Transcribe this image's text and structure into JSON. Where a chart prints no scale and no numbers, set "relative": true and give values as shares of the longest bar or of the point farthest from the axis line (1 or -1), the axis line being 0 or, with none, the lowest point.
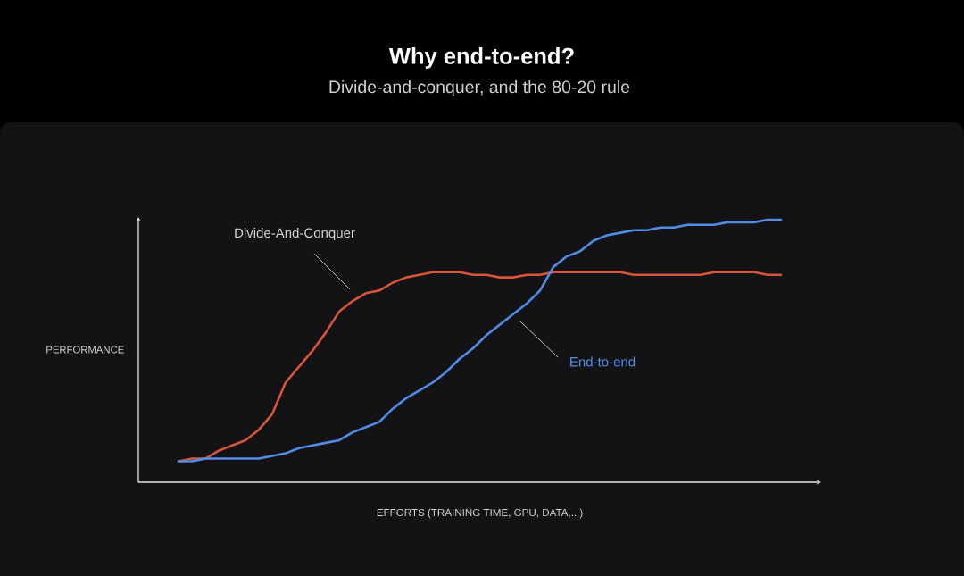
{
  "chart_data": {
    "type": "line",
    "title": "Why end-to-end?",
    "subtitle": "Divide-and-conquer, and the 80-20 rule",
    "xlabel": "EFFORTS (TRAINING TIME, GPU, DATA,...)",
    "ylabel": "PERFORMANCE",
    "relative": true,
    "categories": [
      null,
      null,
      null,
      null,
      null,
      null,
      null,
      null,
      null,
      null,
      null,
      null,
      null,
      null,
      null,
      null,
      null,
      null,
      null,
      null,
      null,
      null,
      null,
      null,
      null,
      null,
      null,
      null,
      null,
      null,
      null,
      null,
      null,
      null,
      null,
      null,
      null,
      null,
      null,
      null,
      null,
      null,
      null,
      null,
      null,
      null
    ],
    "series": [
      {
        "name": "Divide-And-Conquer",
        "color": "#d9553a",
        "values": [
          0.08,
          0.09,
          0.09,
          0.12,
          0.14,
          0.16,
          0.2,
          0.26,
          0.38,
          0.44,
          0.5,
          0.57,
          0.65,
          0.69,
          0.72,
          0.73,
          0.76,
          0.78,
          0.79,
          0.8,
          0.8,
          0.8,
          0.79,
          0.79,
          0.78,
          0.78,
          0.79,
          0.79,
          0.8,
          0.8,
          0.8,
          0.8,
          0.8,
          0.8,
          0.79,
          0.79,
          0.79,
          0.79,
          0.79,
          0.79,
          0.8,
          0.8,
          0.8,
          0.8,
          0.79,
          0.79
        ]
      },
      {
        "name": "End-to-end",
        "color": "#4f8de6",
        "values": [
          0.08,
          0.08,
          0.09,
          0.09,
          0.09,
          0.09,
          0.09,
          0.1,
          0.11,
          0.13,
          0.14,
          0.15,
          0.16,
          0.19,
          0.21,
          0.23,
          0.28,
          0.32,
          0.35,
          0.38,
          0.42,
          0.47,
          0.51,
          0.56,
          0.6,
          0.64,
          0.68,
          0.73,
          0.82,
          0.86,
          0.88,
          0.92,
          0.94,
          0.95,
          0.96,
          0.96,
          0.97,
          0.97,
          0.98,
          0.98,
          0.98,
          0.99,
          0.99,
          0.99,
          1.0,
          1.0
        ]
      }
    ]
  }
}
